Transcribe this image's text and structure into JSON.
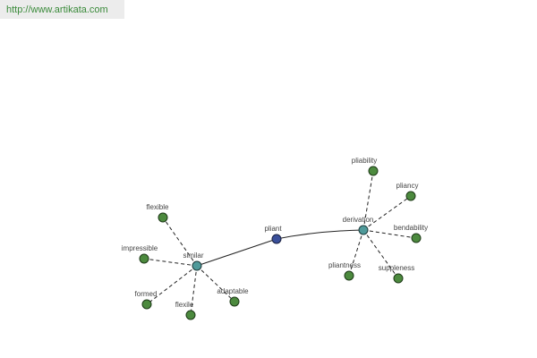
{
  "header": {
    "url": "http://www.artikata.com"
  },
  "nodes": [
    {
      "label": "pliant"
    },
    {
      "label": "similar"
    },
    {
      "label": "derivation"
    },
    {
      "label": "flexible"
    },
    {
      "label": "impressible"
    },
    {
      "label": "formed"
    },
    {
      "label": "flexile"
    },
    {
      "label": "adaptable"
    },
    {
      "label": "pliability"
    },
    {
      "label": "pliancy"
    },
    {
      "label": "bendability"
    },
    {
      "label": "suppleness"
    },
    {
      "label": "pliantness"
    }
  ]
}
